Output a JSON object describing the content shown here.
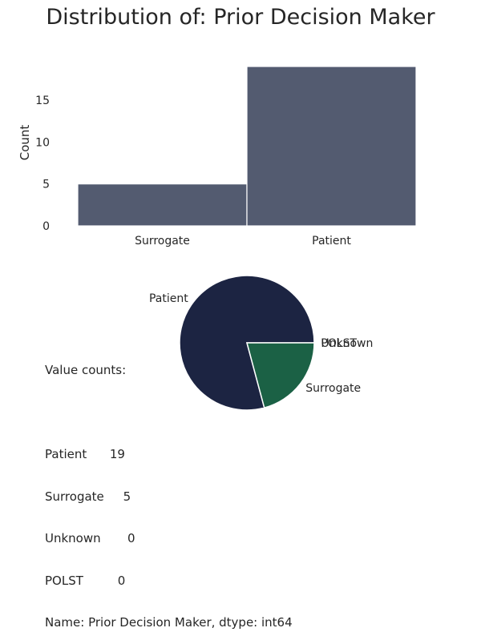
{
  "title": "Distribution of: Prior Decision Maker",
  "chart_data": [
    {
      "type": "bar",
      "categories": [
        "Surrogate",
        "Patient"
      ],
      "values": [
        5,
        19
      ],
      "xlabel": "",
      "ylabel": "Count",
      "ylim": [
        0,
        19
      ],
      "yticks": [
        0,
        5,
        10,
        15
      ],
      "color": "#535b70",
      "grid": false
    },
    {
      "type": "pie",
      "labels": [
        "Patient",
        "Surrogate",
        "Unknown",
        "POLST"
      ],
      "values": [
        19,
        5,
        0,
        0
      ],
      "colors": [
        "#1c2442",
        "#1b6145",
        "#1c2442",
        "#1b6145"
      ]
    }
  ],
  "value_counts": {
    "header": "Value counts:",
    "rows": [
      "Patient      19",
      "Surrogate     5",
      "Unknown       0",
      "POLST         0"
    ],
    "footer": "Name: Prior Decision Maker, dtype: int64"
  }
}
